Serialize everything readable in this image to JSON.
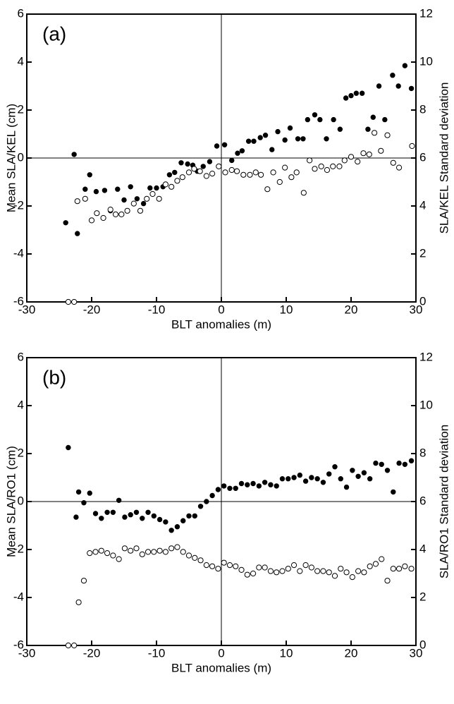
{
  "chart_data": [
    {
      "type": "scatter",
      "annotation": "(a)",
      "xlabel": "BLT anomalies (m)",
      "ylabel": "Mean SLA/KEL (cm)",
      "y2label": "SLA/KEL Standard deviation",
      "xlim": [
        -30,
        30
      ],
      "ylim": [
        -6,
        6
      ],
      "y2lim": [
        0,
        12
      ],
      "xticks": [
        -30,
        -20,
        -10,
        0,
        10,
        20,
        30
      ],
      "yticks": [
        -6,
        -4,
        -2,
        0,
        2,
        4,
        6
      ],
      "y2ticks": [
        0,
        2,
        4,
        6,
        8,
        10,
        12
      ],
      "series": [
        {
          "color": "#000000",
          "marker": "filled",
          "x": [
            -24,
            -22.7,
            -22.2,
            -21,
            -20.3,
            -19.3,
            -18,
            -17.1,
            -16,
            -15,
            -14,
            -13,
            -12,
            -11,
            -10,
            -9,
            -8,
            -7.2,
            -6.2,
            -5.2,
            -4.4,
            -3.7,
            -2.8,
            -1.8,
            -0.7,
            0.5,
            1.6,
            2.5,
            3.2,
            4.2,
            5,
            6,
            6.8,
            7.8,
            8.7,
            9.8,
            10.6,
            11.8,
            12.6,
            13.3,
            14.4,
            15.2,
            16.2,
            17.3,
            18.3,
            19.2,
            20,
            20.8,
            21.7,
            22.6,
            23.4,
            24.3,
            25.2,
            26.4,
            27.3,
            28.3,
            29.3
          ],
          "values": [
            -2.7,
            0.15,
            -3.15,
            -1.3,
            -0.7,
            -1.4,
            -1.35,
            -2.2,
            -1.3,
            -1.75,
            -1.2,
            -1.7,
            -1.9,
            -1.25,
            -1.25,
            -1.2,
            -0.7,
            -0.6,
            -0.2,
            -0.25,
            -0.3,
            -0.55,
            -0.35,
            -0.15,
            0.5,
            0.55,
            -0.1,
            0.2,
            0.3,
            0.7,
            0.7,
            0.85,
            0.95,
            0.35,
            1.1,
            0.75,
            1.25,
            0.8,
            0.8,
            1.6,
            1.8,
            1.6,
            0.8,
            1.6,
            1.2,
            2.5,
            2.6,
            2.7,
            2.7,
            1.2,
            1.7,
            3,
            1.6,
            3.45,
            3,
            3.85,
            2.9
          ]
        },
        {
          "color": "#000000",
          "marker": "open",
          "axis": "y2",
          "x": [
            -23.6,
            -22.7,
            -22.2,
            -21,
            -20,
            -19.2,
            -18.2,
            -17.1,
            -16.3,
            -15.4,
            -14.5,
            -13.5,
            -12.5,
            -11.5,
            -10.6,
            -9.6,
            -8.6,
            -7.7,
            -6.8,
            -6,
            -5,
            -4.2,
            -3.3,
            -2.3,
            -1.4,
            -0.4,
            0.6,
            1.6,
            2.4,
            3.4,
            4.4,
            5.3,
            6.1,
            7.1,
            8,
            9,
            9.8,
            10.8,
            11.6,
            12.7,
            13.6,
            14.4,
            15.4,
            16.3,
            17.2,
            18.2,
            19,
            20,
            21,
            21.9,
            22.8,
            23.6,
            24.6,
            25.6,
            26.5,
            27.4,
            29.4
          ],
          "values": [
            0,
            0,
            4.2,
            4.3,
            3.4,
            3.7,
            3.5,
            3.85,
            3.65,
            3.65,
            3.8,
            4.1,
            3.8,
            4.3,
            4.5,
            4.3,
            4.9,
            4.8,
            5.05,
            5.2,
            5.4,
            5.55,
            5.45,
            5.25,
            5.35,
            5.65,
            5.4,
            5.5,
            5.45,
            5.3,
            5.3,
            5.4,
            5.3,
            4.7,
            5.4,
            5,
            5.6,
            5.2,
            5.4,
            4.55,
            5.9,
            5.55,
            5.65,
            5.5,
            5.65,
            5.65,
            5.9,
            6.05,
            5.85,
            6.2,
            6.15,
            7.05,
            6.3,
            6.95,
            5.8,
            5.6,
            6.5
          ]
        }
      ]
    },
    {
      "type": "scatter",
      "annotation": "(b)",
      "xlabel": "BLT anomalies (m)",
      "ylabel": "Mean SLA/RO1 (cm)",
      "y2label": "SLA/RO1 Standard deviation",
      "xlim": [
        -30,
        30
      ],
      "ylim": [
        -6,
        6
      ],
      "y2lim": [
        0,
        12
      ],
      "xticks": [
        -30,
        -20,
        -10,
        0,
        10,
        20,
        30
      ],
      "yticks": [
        -6,
        -4,
        -2,
        0,
        2,
        4,
        6
      ],
      "y2ticks": [
        0,
        2,
        4,
        6,
        8,
        10,
        12
      ],
      "series": [
        {
          "color": "#000000",
          "marker": "filled",
          "x": [
            -23.6,
            -22.4,
            -22,
            -21.2,
            -20.3,
            -19.4,
            -18.5,
            -17.6,
            -16.7,
            -15.8,
            -14.9,
            -14,
            -13.1,
            -12.2,
            -11.3,
            -10.4,
            -9.5,
            -8.6,
            -7.7,
            -6.8,
            -5.9,
            -5,
            -4.1,
            -3.2,
            -2.3,
            -1.4,
            -0.5,
            0.4,
            1.3,
            2.2,
            3.1,
            4,
            4.9,
            5.8,
            6.7,
            7.6,
            8.5,
            9.4,
            10.3,
            11.2,
            12.1,
            13,
            13.9,
            14.8,
            15.7,
            16.6,
            17.5,
            18.4,
            19.3,
            20.2,
            21.1,
            22,
            22.9,
            23.8,
            24.7,
            25.6,
            26.5,
            27.4,
            28.3,
            29.3
          ],
          "values": [
            2.25,
            -0.65,
            0.4,
            -0.05,
            0.35,
            -0.5,
            -0.7,
            -0.45,
            -0.45,
            0.05,
            -0.65,
            -0.55,
            -0.45,
            -0.7,
            -0.45,
            -0.6,
            -0.75,
            -0.85,
            -1.2,
            -1.05,
            -0.8,
            -0.6,
            -0.6,
            -0.2,
            0,
            0.25,
            0.5,
            0.65,
            0.55,
            0.55,
            0.75,
            0.7,
            0.75,
            0.65,
            0.8,
            0.7,
            0.65,
            0.95,
            0.95,
            1,
            1.1,
            0.85,
            1,
            0.95,
            0.8,
            1.15,
            1.45,
            0.95,
            0.6,
            1.3,
            1.05,
            1.2,
            0.95,
            1.6,
            1.55,
            1.3,
            0.4,
            1.6,
            1.55,
            1.7
          ]
        },
        {
          "color": "#000000",
          "marker": "open",
          "axis": "y2",
          "x": [
            -23.6,
            -22.7,
            -22,
            -21.2,
            -20.3,
            -19.4,
            -18.5,
            -17.6,
            -16.7,
            -15.8,
            -14.9,
            -14,
            -13.1,
            -12.2,
            -11.3,
            -10.4,
            -9.5,
            -8.6,
            -7.7,
            -6.8,
            -5.9,
            -5,
            -4.1,
            -3.2,
            -2.3,
            -1.4,
            -0.5,
            0.4,
            1.3,
            2.2,
            3.1,
            4,
            4.9,
            5.8,
            6.7,
            7.6,
            8.5,
            9.4,
            10.3,
            11.2,
            12.1,
            13,
            13.9,
            14.8,
            15.7,
            16.6,
            17.5,
            18.4,
            19.3,
            20.2,
            21.1,
            22,
            22.9,
            23.8,
            24.7,
            25.6,
            26.5,
            27.4,
            28.3,
            29.3
          ],
          "values": [
            0,
            0,
            1.8,
            2.7,
            3.85,
            3.9,
            3.95,
            3.85,
            3.75,
            3.6,
            4.05,
            3.95,
            4.05,
            3.8,
            3.9,
            3.9,
            3.95,
            3.9,
            4.05,
            4.1,
            3.9,
            3.75,
            3.65,
            3.55,
            3.35,
            3.3,
            3.2,
            3.45,
            3.35,
            3.3,
            3.15,
            2.95,
            3,
            3.25,
            3.25,
            3.1,
            3.05,
            3.1,
            3.2,
            3.35,
            3.1,
            3.35,
            3.25,
            3.1,
            3.1,
            3.05,
            2.9,
            3.2,
            3.05,
            2.85,
            3.1,
            3.05,
            3.3,
            3.4,
            3.6,
            2.7,
            3.2,
            3.2,
            3.3,
            3.2
          ]
        }
      ]
    }
  ]
}
